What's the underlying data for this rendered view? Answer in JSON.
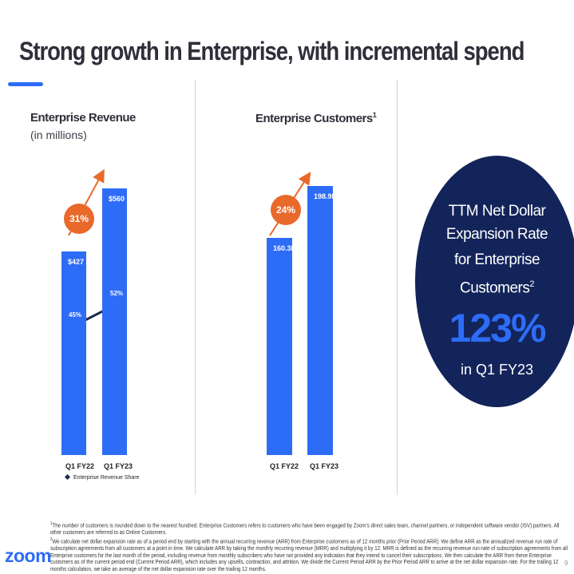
{
  "slide": {
    "title": "Strong growth in Enterprise, with incremental spend",
    "page_number": "9"
  },
  "left_panel": {
    "title": "Enterprise Revenue",
    "subtitle": "(in millions)",
    "growth": "31%",
    "legend": "Enterprise Revenue Share"
  },
  "middle_panel": {
    "title": "Enterprise Customers",
    "title_sup": "1",
    "growth": "24%"
  },
  "right_panel": {
    "line1": "TTM Net Dollar",
    "line2": "Expansion Rate",
    "line3": "for Enterprise",
    "line4": "Customers",
    "line4_sup": "2",
    "value": "123%",
    "period": "in Q1 FY23"
  },
  "chart_data": [
    {
      "type": "bar",
      "title": "Enterprise Revenue (in millions)",
      "categories": [
        "Q1 FY22",
        "Q1 FY23"
      ],
      "values": [
        427,
        560
      ],
      "value_labels": [
        "$427",
        "$560"
      ],
      "unit": "$ millions",
      "growth_label": "31%",
      "secondary_series": {
        "name": "Enterprise Revenue Share",
        "type": "line",
        "values": [
          45,
          52
        ],
        "labels": [
          "45%",
          "52%"
        ]
      }
    },
    {
      "type": "bar",
      "title": "Enterprise Customers",
      "categories": [
        "Q1 FY22",
        "Q1 FY23"
      ],
      "values": [
        160.3,
        198.9
      ],
      "value_labels": [
        "160.3K",
        "198.9K"
      ],
      "unit": "thousands",
      "growth_label": "24%"
    }
  ],
  "footnotes": {
    "note1_num": "1",
    "note1": "The number of customers is rounded down to the nearest hundred. Enterprise Customers refers to customers who have been engaged by Zoom's direct sales team, channel partners, or independent software vendor (ISV) partners. All other customers are referred to as Online Customers.",
    "note2_num": "2",
    "note2": "We calculate net dollar expansion rate as of a period end by starting with the annual recurring revenue (ARR) from Enterprise customers as of 12 months prior (Prior Period ARR). We define ARR as the annualized revenue run rate of subscription agreements from all customers at a point in time. We calculate ARR by taking the monthly recurring revenue (MRR) and multiplying it by 12. MRR is defined as the recurring revenue run-rate of subscription agreements from all Enterprise customers for the last month of the period, including revenue from monthly subscribers who have not provided any indication that they intend to cancel their subscriptions. We then calculate the ARR from these Enterprise customers as of the current period end (Current Period ARR), which includes any upsells, contraction, and attrition. We divide the Current Period ARR by the Prior Period ARR to arrive at the net dollar expansion rate. For the trailing 12 months calculation, we take an average of the net dollar expansion rate over the trailing 12 months."
  },
  "logo": {
    "text": "zoom"
  },
  "colors": {
    "bar": "#2d6cf6",
    "accent": "#e8692a",
    "navy": "#13245a",
    "line": "#1d2b4a"
  }
}
